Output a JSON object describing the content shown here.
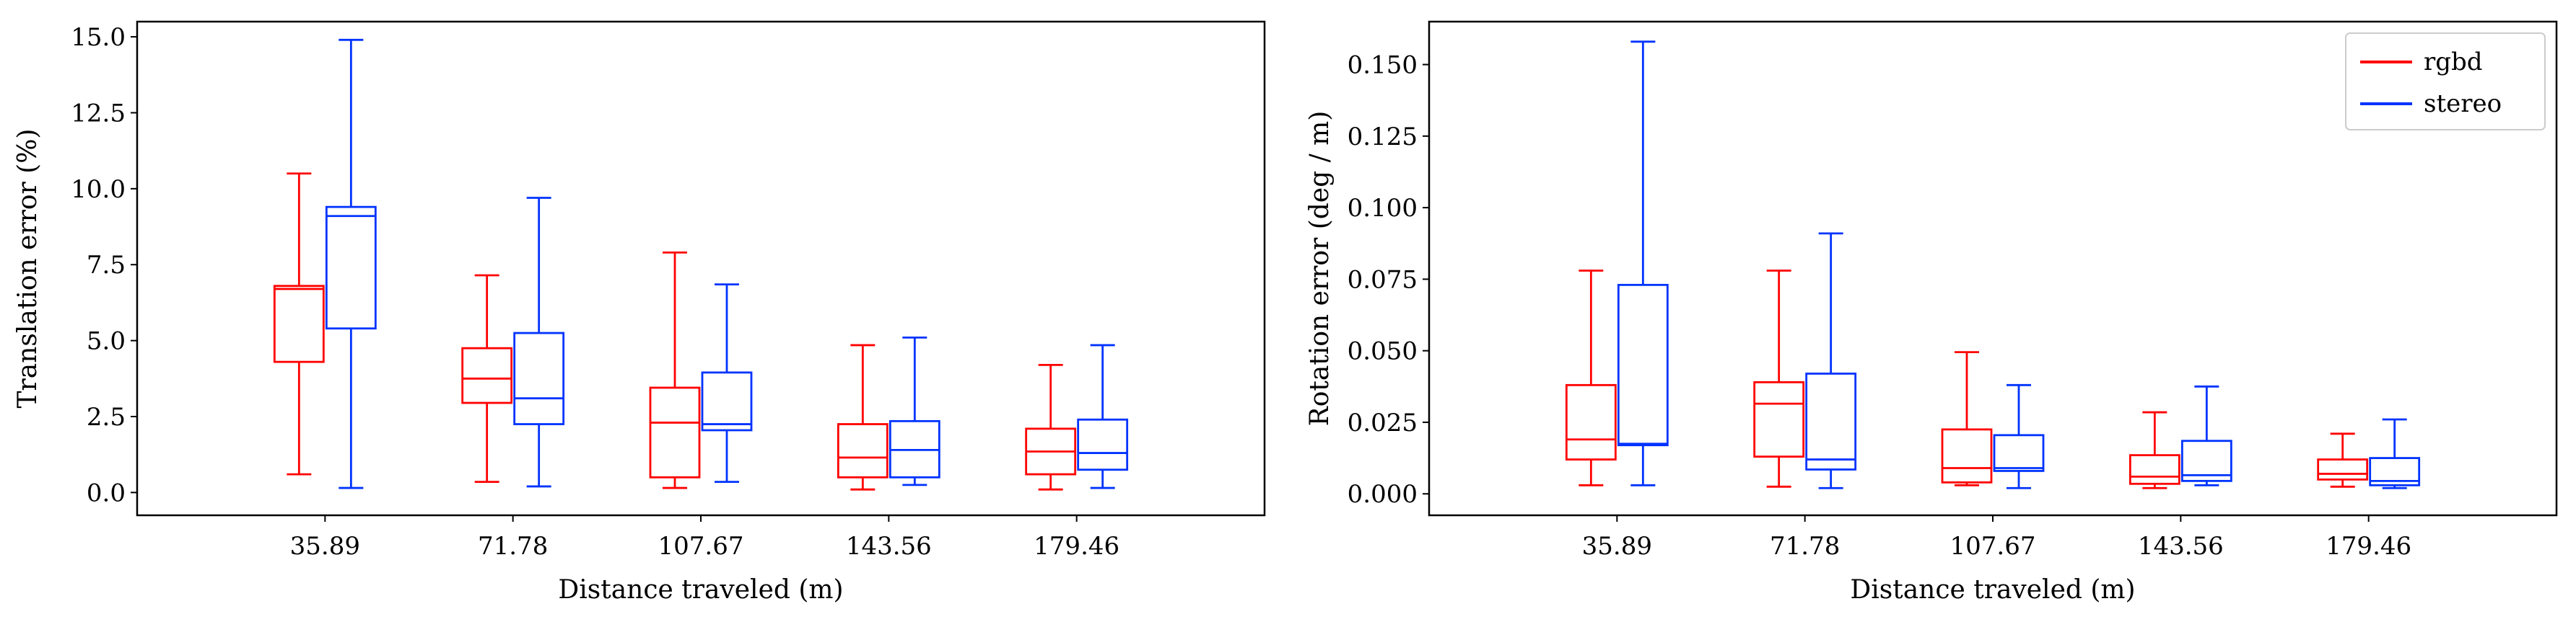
{
  "colors": {
    "rgbd": "#ff0000",
    "stereo": "#0033ff"
  },
  "chart_data": [
    {
      "type": "box",
      "xlabel": "Distance traveled (m)",
      "ylabel": "Translation error (%)",
      "categories": [
        "35.89",
        "71.78",
        "107.67",
        "143.56",
        "179.46"
      ],
      "ylim": [
        -0.75,
        15.5
      ],
      "yticks": [
        "0.0",
        "2.5",
        "5.0",
        "7.5",
        "10.0",
        "12.5",
        "15.0"
      ],
      "legend": null,
      "series": [
        {
          "name": "rgbd",
          "color": "#ff0000",
          "boxes": [
            {
              "whislo": 0.6,
              "q1": 4.3,
              "med": 6.7,
              "q3": 6.8,
              "whishi": 10.5
            },
            {
              "whislo": 0.35,
              "q1": 2.95,
              "med": 3.75,
              "q3": 4.75,
              "whishi": 7.15
            },
            {
              "whislo": 0.15,
              "q1": 0.5,
              "med": 2.3,
              "q3": 3.45,
              "whishi": 7.9
            },
            {
              "whislo": 0.1,
              "q1": 0.5,
              "med": 1.15,
              "q3": 2.25,
              "whishi": 4.85
            },
            {
              "whislo": 0.1,
              "q1": 0.6,
              "med": 1.35,
              "q3": 2.1,
              "whishi": 4.2
            }
          ]
        },
        {
          "name": "stereo",
          "color": "#0033ff",
          "boxes": [
            {
              "whislo": 0.15,
              "q1": 5.4,
              "med": 9.1,
              "q3": 9.4,
              "whishi": 14.9
            },
            {
              "whislo": 0.2,
              "q1": 2.25,
              "med": 3.1,
              "q3": 5.25,
              "whishi": 9.7
            },
            {
              "whislo": 0.35,
              "q1": 2.05,
              "med": 2.25,
              "q3": 3.95,
              "whishi": 6.85
            },
            {
              "whislo": 0.25,
              "q1": 0.5,
              "med": 1.4,
              "q3": 2.35,
              "whishi": 5.1
            },
            {
              "whislo": 0.15,
              "q1": 0.75,
              "med": 1.3,
              "q3": 2.4,
              "whishi": 4.85
            }
          ]
        }
      ]
    },
    {
      "type": "box",
      "xlabel": "Distance traveled (m)",
      "ylabel": "Rotation error (deg / m)",
      "categories": [
        "35.89",
        "71.78",
        "107.67",
        "143.56",
        "179.46"
      ],
      "ylim": [
        -0.0075,
        0.165
      ],
      "yticks": [
        "0.000",
        "0.025",
        "0.050",
        "0.075",
        "0.100",
        "0.125",
        "0.150"
      ],
      "legend": "top-right",
      "series": [
        {
          "name": "rgbd",
          "color": "#ff0000",
          "boxes": [
            {
              "whislo": 0.003,
              "q1": 0.012,
              "med": 0.019,
              "q3": 0.038,
              "whishi": 0.078
            },
            {
              "whislo": 0.0025,
              "q1": 0.013,
              "med": 0.0315,
              "q3": 0.039,
              "whishi": 0.078
            },
            {
              "whislo": 0.003,
              "q1": 0.004,
              "med": 0.009,
              "q3": 0.0225,
              "whishi": 0.0495
            },
            {
              "whislo": 0.002,
              "q1": 0.0035,
              "med": 0.006,
              "q3": 0.0135,
              "whishi": 0.0285
            },
            {
              "whislo": 0.0025,
              "q1": 0.005,
              "med": 0.007,
              "q3": 0.012,
              "whishi": 0.021
            }
          ]
        },
        {
          "name": "stereo",
          "color": "#0033ff",
          "boxes": [
            {
              "whislo": 0.003,
              "q1": 0.017,
              "med": 0.0175,
              "q3": 0.073,
              "whishi": 0.158
            },
            {
              "whislo": 0.002,
              "q1": 0.0085,
              "med": 0.012,
              "q3": 0.042,
              "whishi": 0.091
            },
            {
              "whislo": 0.002,
              "q1": 0.008,
              "med": 0.009,
              "q3": 0.0205,
              "whishi": 0.038
            },
            {
              "whislo": 0.003,
              "q1": 0.0045,
              "med": 0.0065,
              "q3": 0.0185,
              "whishi": 0.0375
            },
            {
              "whislo": 0.002,
              "q1": 0.003,
              "med": 0.0045,
              "q3": 0.0125,
              "whishi": 0.026
            }
          ]
        }
      ]
    }
  ]
}
